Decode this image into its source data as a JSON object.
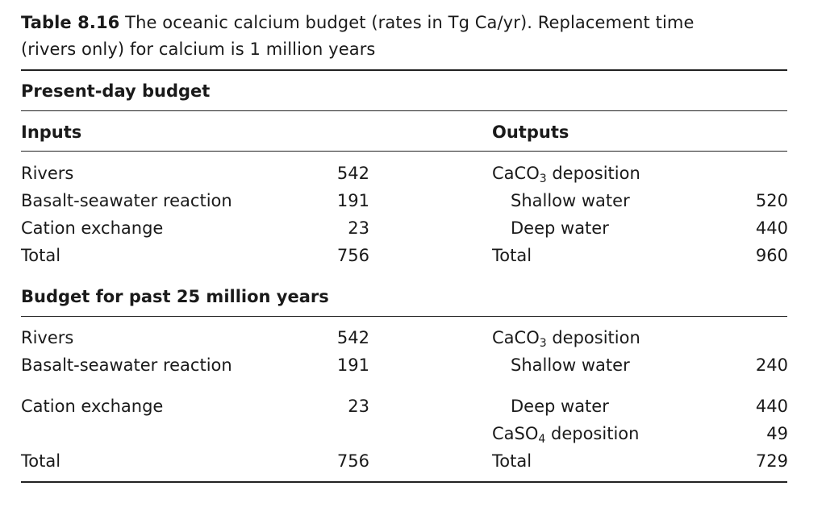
{
  "caption": {
    "label": "Table 8.16",
    "text": "The oceanic calcium budget (rates in Tg Ca/yr). Replacement time",
    "text2": "(rivers only) for calcium is 1 million years"
  },
  "present": {
    "heading": "Present-day budget",
    "inputs_header": "Inputs",
    "outputs_header": "Outputs",
    "inputs": [
      {
        "label": "Rivers",
        "value": "542"
      },
      {
        "label": "Basalt-seawater reaction",
        "value": "191"
      },
      {
        "label": "Cation exchange",
        "value": "23"
      },
      {
        "label": "Total",
        "value": "756"
      }
    ],
    "outputs": {
      "caco3_pre": "CaCO",
      "caco3_sub": "3",
      "caco3_post": " deposition",
      "shallow_label": "Shallow water",
      "shallow_value": "520",
      "deep_label": "Deep water",
      "deep_value": "440",
      "total_label": "Total",
      "total_value": "960"
    }
  },
  "past": {
    "heading": "Budget for past 25 million years",
    "inputs": [
      {
        "label": "Rivers",
        "value": "542"
      },
      {
        "label": "Basalt-seawater reaction",
        "value": "191"
      },
      {
        "label": "Cation exchange",
        "value": "23"
      },
      {
        "label": "Total",
        "value": "756"
      }
    ],
    "outputs": {
      "caco3_pre": "CaCO",
      "caco3_sub": "3",
      "caco3_post": " deposition",
      "shallow_label": "Shallow water",
      "shallow_value": "240",
      "deep_label": "Deep water",
      "deep_value": "440",
      "caso4_pre": "CaSO",
      "caso4_sub": "4",
      "caso4_post": " deposition",
      "caso4_value": "49",
      "total_label": "Total",
      "total_value": "729"
    }
  }
}
